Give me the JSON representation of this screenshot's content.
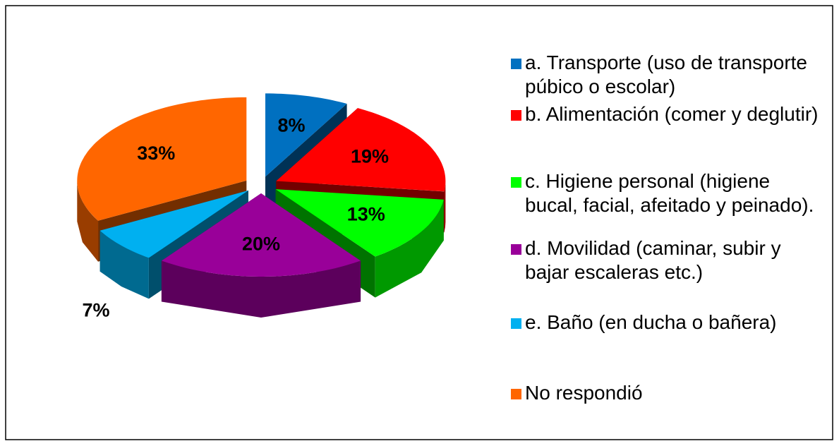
{
  "chart_data": {
    "type": "pie",
    "categories": [
      "a. Transporte (uso de transporte púbico o escolar)",
      "b. Alimentación (comer y deglutir)",
      "c. Higiene personal (higiene bucal, facial, afeitado y peinado).",
      "d. Movilidad (caminar, subir y bajar escaleras etc.)",
      "e. Baño (en ducha o bañera)",
      "No respondió"
    ],
    "values": [
      8,
      19,
      13,
      20,
      7,
      33
    ],
    "value_labels": [
      "8%",
      "19%",
      "13%",
      "20%",
      "7%",
      "33%"
    ],
    "colors": [
      "#0070c0",
      "#ff0000",
      "#00ff00",
      "#990099",
      "#00b0f0",
      "#ff6600"
    ],
    "legend": "right"
  }
}
